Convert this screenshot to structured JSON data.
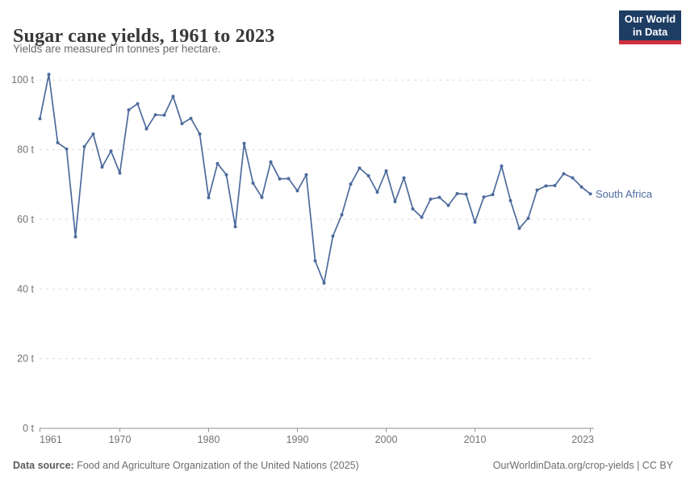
{
  "header": {
    "title": "Sugar cane yields, 1961 to 2023",
    "subtitle": "Yields are measured in tonnes per hectare."
  },
  "logo": {
    "line1": "Our World",
    "line2": "in Data"
  },
  "chart_data": {
    "type": "line",
    "title": "Sugar cane yields, 1961 to 2023",
    "xlabel": "",
    "ylabel": "tonnes per hectare",
    "unit_suffix": " t",
    "xlim": [
      1961,
      2023
    ],
    "ylim": [
      0,
      104
    ],
    "grid": "horizontal-dashed",
    "legend_position": "end-of-line-label",
    "xticks": [
      1961,
      1970,
      1980,
      1990,
      2000,
      2010,
      2023
    ],
    "yticks": [
      0,
      20,
      40,
      60,
      80,
      100
    ],
    "series": [
      {
        "name": "South Africa",
        "color": "#4c6a9c",
        "x": [
          1961,
          1962,
          1963,
          1964,
          1965,
          1966,
          1967,
          1968,
          1969,
          1970,
          1971,
          1972,
          1973,
          1974,
          1975,
          1976,
          1977,
          1978,
          1979,
          1980,
          1981,
          1982,
          1983,
          1984,
          1985,
          1986,
          1987,
          1988,
          1989,
          1990,
          1991,
          1992,
          1993,
          1994,
          1995,
          1996,
          1997,
          1998,
          1999,
          2000,
          2001,
          2002,
          2003,
          2004,
          2005,
          2006,
          2007,
          2008,
          2009,
          2010,
          2011,
          2012,
          2013,
          2014,
          2015,
          2016,
          2017,
          2018,
          2019,
          2020,
          2021,
          2022,
          2023
        ],
        "values": [
          88.9,
          101.6,
          82.0,
          80.2,
          55.0,
          80.9,
          84.5,
          75.0,
          79.6,
          73.3,
          91.4,
          93.2,
          86.0,
          90.0,
          89.9,
          95.3,
          87.5,
          89.0,
          84.5,
          66.2,
          76.0,
          72.8,
          57.9,
          81.8,
          70.4,
          66.3,
          76.5,
          71.6,
          71.7,
          68.2,
          72.8,
          48.1,
          41.7,
          55.2,
          61.3,
          70.1,
          74.7,
          72.5,
          67.8,
          73.9,
          65.1,
          71.9,
          63.0,
          60.6,
          65.8,
          66.3,
          64.0,
          67.4,
          67.2,
          59.2,
          66.4,
          67.1,
          75.3,
          65.4,
          57.4,
          60.3,
          68.4,
          69.6,
          69.7,
          73.1,
          71.9,
          69.3,
          67.3
        ]
      }
    ]
  },
  "footer": {
    "source_label": "Data source:",
    "source_text": " Food and Agriculture Organization of the United Nations (2025)",
    "credit": "OurWorldinData.org/crop-yields | CC BY"
  },
  "colors": {
    "line": "#4c6a9c",
    "axis": "#8f8f8f",
    "grid": "#dadada",
    "tick_text": "#737373",
    "title_text": "#383838",
    "subtitle_text": "#6b6b6b",
    "footer_text": "#6d6d6d",
    "logo_bg": "#1d3d63",
    "logo_bar": "#cf303e"
  }
}
